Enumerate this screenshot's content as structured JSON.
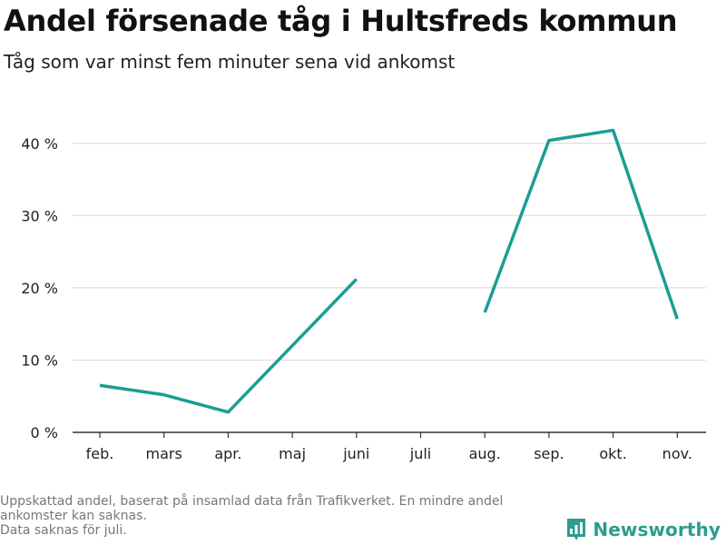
{
  "header": {
    "title": "Andel försenade tåg i Hultsfreds kommun",
    "subtitle": "Tåg som var minst fem minuter sena vid ankomst"
  },
  "footer": {
    "note_lines": [
      "Uppskattad andel, baserat på insamlad data från Trafikverket. En mindre andel",
      "ankomster kan saknas.",
      "Data saknas för juli."
    ],
    "brand": "Newsworthy",
    "brand_icon": "bar-chart-logo-icon"
  },
  "colors": {
    "line": "#1a9e96",
    "grid": "#dddddd",
    "axis": "#333333",
    "brand": "#2a9d8f"
  },
  "chart_data": {
    "type": "line",
    "title": "Andel försenade tåg i Hultsfreds kommun",
    "subtitle": "Tåg som var minst fem minuter sena vid ankomst",
    "categories": [
      "feb.",
      "mars",
      "apr.",
      "maj",
      "juni",
      "juli",
      "aug.",
      "sep.",
      "okt.",
      "nov."
    ],
    "series": [
      {
        "values": [
          6.5,
          5.2,
          2.8,
          12.0,
          21.2,
          null,
          16.6,
          40.4,
          41.8,
          15.7
        ]
      }
    ],
    "ylim": [
      0,
      45
    ],
    "yticks": [
      0,
      10,
      20,
      30,
      40
    ],
    "ytick_labels": [
      "0 %",
      "10 %",
      "20 %",
      "30 %",
      "40 %"
    ],
    "grid": true,
    "legend": "none"
  }
}
